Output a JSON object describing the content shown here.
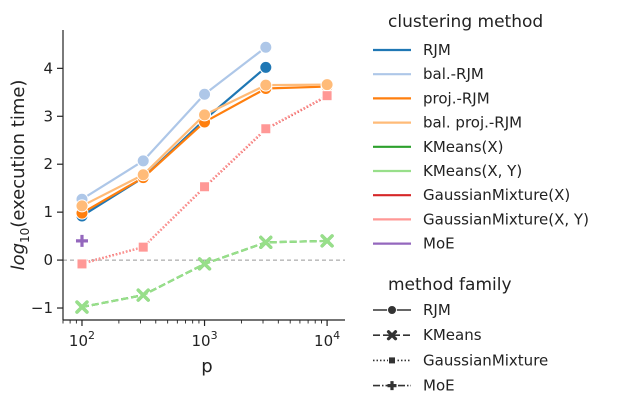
{
  "chart_data": {
    "type": "line",
    "xlabel": "p",
    "ylabel": "log10(execution time)",
    "x_scale": "log",
    "xlim": [
      70,
      14000
    ],
    "ylim": [
      -1.25,
      4.8
    ],
    "x_ticks": [
      {
        "value": 100,
        "base": "10",
        "exp": "2"
      },
      {
        "value": 1000,
        "base": "10",
        "exp": "3"
      },
      {
        "value": 10000,
        "base": "10",
        "exp": "4"
      }
    ],
    "y_ticks": [
      -1,
      0,
      1,
      2,
      3,
      4
    ],
    "y_tick_labels": [
      "−1",
      "0",
      "1",
      "2",
      "3",
      "4"
    ],
    "reference_line": {
      "y": 0,
      "style": "dashed",
      "color": "#999999"
    },
    "series": [
      {
        "name": "RJM",
        "family": "RJM",
        "color": "#1f77b4",
        "x": [
          100,
          316,
          1000,
          3162
        ],
        "values": [
          0.92,
          1.72,
          2.93,
          4.02
        ]
      },
      {
        "name": "bal.-RJM",
        "family": "RJM",
        "color": "#aec7e8",
        "x": [
          100,
          316,
          1000,
          3162
        ],
        "values": [
          1.27,
          2.07,
          3.46,
          4.44
        ]
      },
      {
        "name": "proj.-RJM",
        "family": "RJM",
        "color": "#ff7f0e",
        "x": [
          100,
          316,
          1000,
          3162,
          10000
        ],
        "values": [
          0.98,
          1.72,
          2.88,
          3.58,
          3.62
        ]
      },
      {
        "name": "bal. proj.-RJM",
        "family": "RJM",
        "color": "#ffbb78",
        "x": [
          100,
          316,
          1000,
          3162,
          10000
        ],
        "values": [
          1.13,
          1.78,
          3.03,
          3.65,
          3.66
        ]
      },
      {
        "name": "KMeans(X)",
        "family": "KMeans",
        "color": "#2ca02c",
        "x": [
          100,
          316,
          1000,
          3162,
          10000
        ],
        "values": [
          -0.98,
          -0.73,
          -0.08,
          0.37,
          0.4
        ]
      },
      {
        "name": "KMeans(X, Y)",
        "family": "KMeans",
        "color": "#98df8a",
        "x": [
          100,
          316,
          1000,
          3162,
          10000
        ],
        "values": [
          -0.98,
          -0.73,
          -0.08,
          0.37,
          0.4
        ]
      },
      {
        "name": "GaussianMixture(X)",
        "family": "GaussianMixture",
        "color": "#d62728",
        "x": [
          100,
          316,
          1000,
          3162,
          10000
        ],
        "values": [
          -0.07,
          0.27,
          1.52,
          2.73,
          3.42
        ]
      },
      {
        "name": "GaussianMixture(X, Y)",
        "family": "GaussianMixture",
        "color": "#ff9896",
        "x": [
          100,
          316,
          1000,
          3162,
          10000
        ],
        "values": [
          -0.08,
          0.27,
          1.53,
          2.74,
          3.43
        ]
      },
      {
        "name": "MoE",
        "family": "MoE",
        "color": "#9467bd",
        "x": [
          100
        ],
        "values": [
          0.4
        ]
      }
    ],
    "legend": {
      "placement": "right",
      "title_color": "clustering method",
      "title_family": "method family",
      "families": [
        {
          "name": "RJM",
          "marker": "circle",
          "dash": "solid"
        },
        {
          "name": "KMeans",
          "marker": "x",
          "dash": "dashed"
        },
        {
          "name": "GaussianMixture",
          "marker": "square",
          "dash": "dotted"
        },
        {
          "name": "MoE",
          "marker": "plus",
          "dash": "dashdot"
        }
      ]
    }
  }
}
